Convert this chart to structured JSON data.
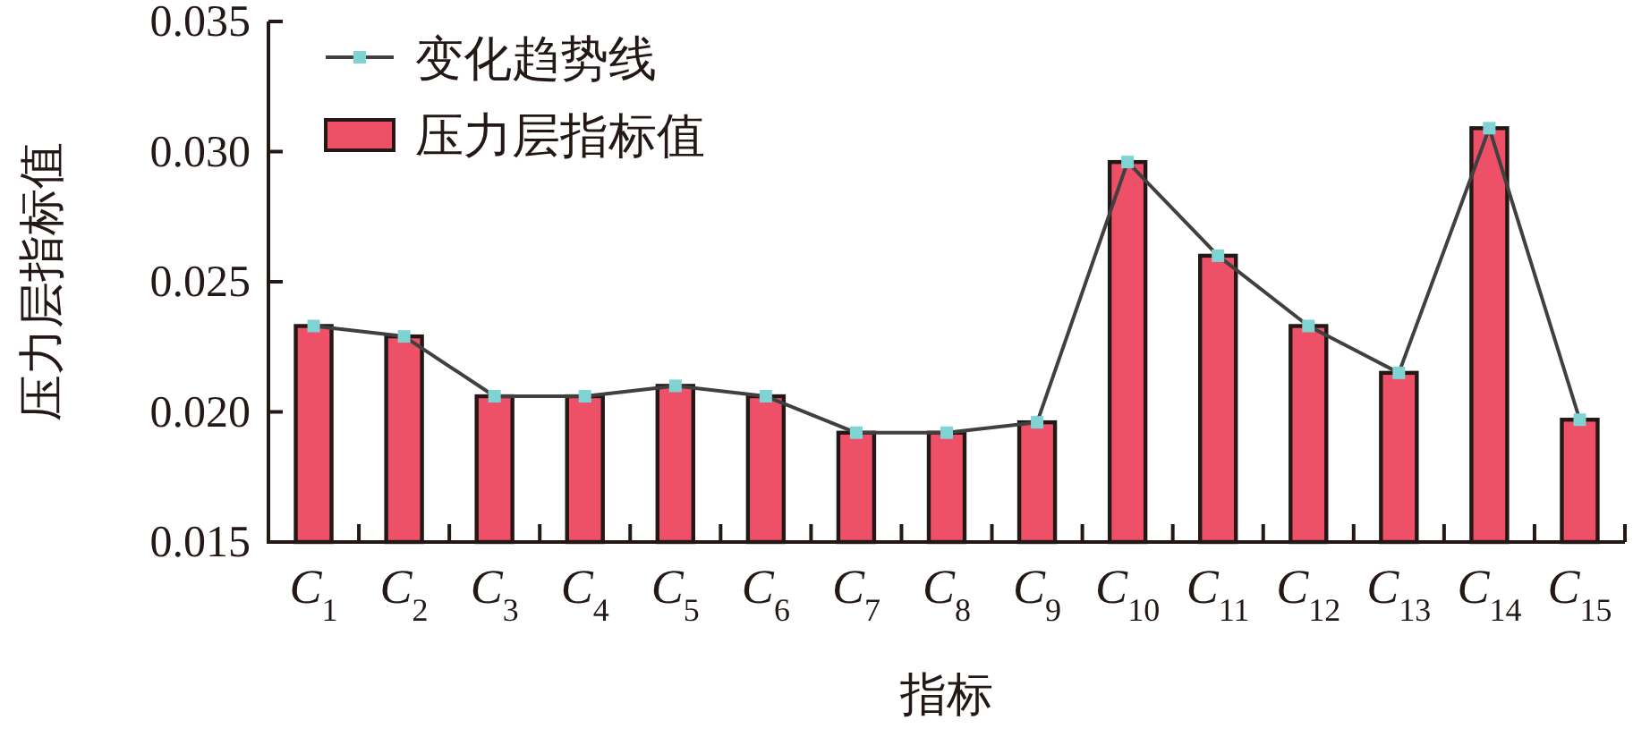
{
  "chart_data": {
    "type": "bar",
    "xlabel": "指标",
    "ylabel": "压力层指标值",
    "categories": [
      "C$_{1}$",
      "C$_{2}$",
      "C$_{3}$",
      "C$_{4}$",
      "C$_{5}$",
      "C$_{6}$",
      "C$_{7}$",
      "C$_{8}$",
      "C$_{9}$",
      "C$_{10}$",
      "C$_{11}$",
      "C$_{12}$",
      "C$_{13}$",
      "C$_{14}$",
      "C$_{15}$"
    ],
    "series": [
      {
        "name": "变化趋势线",
        "type": "line",
        "color": "#404040",
        "marker": "square",
        "values": [
          0.0233,
          0.0229,
          0.0206,
          0.0206,
          0.021,
          0.0206,
          0.0192,
          0.0192,
          0.0196,
          0.0296,
          0.026,
          0.0233,
          0.0215,
          0.0309,
          0.0197
        ]
      },
      {
        "name": "压力层指标值",
        "color": "#ee5068",
        "values": [
          0.0233,
          0.0229,
          0.0206,
          0.0206,
          0.021,
          0.0206,
          0.0192,
          0.0192,
          0.0196,
          0.0296,
          0.026,
          0.0233,
          0.0215,
          0.0309,
          0.0197
        ]
      }
    ],
    "ylim": [
      0.015,
      0.035
    ],
    "yticks": [
      {
        "value": 0.015,
        "label": "0.015"
      },
      {
        "value": 0.02,
        "label": "0.020"
      },
      {
        "value": 0.025,
        "label": "0.025"
      },
      {
        "value": 0.03,
        "label": "0.030"
      },
      {
        "value": 0.035,
        "label": "0.035"
      }
    ],
    "grid": false,
    "legend": "top left"
  }
}
